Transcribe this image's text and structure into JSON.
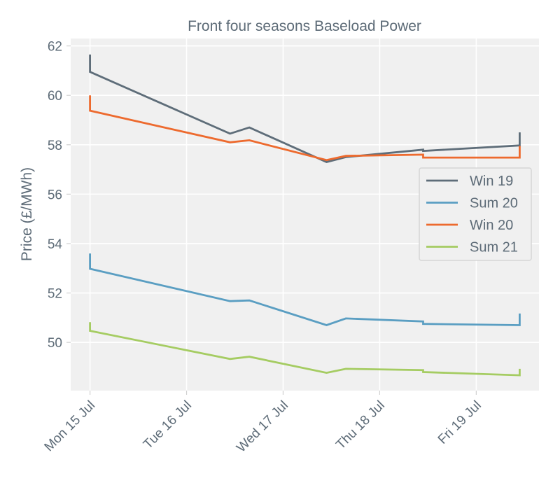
{
  "chart_data": {
    "type": "line",
    "title": "Front four seasons Baseload Power",
    "xlabel": "",
    "ylabel": "Price (£/MWh)",
    "x_ticks": [
      "Mon 15 Jul",
      "Tue 16 Jul",
      "Wed 17 Jul",
      "Thu 18 Jul",
      "Fri 19 Jul"
    ],
    "y_ticks": [
      50,
      52,
      54,
      56,
      58,
      60,
      62
    ],
    "xlim": [
      -0.2,
      4.65
    ],
    "ylim": [
      48.05,
      62.3
    ],
    "grid": true,
    "legend_position": "right",
    "series": [
      {
        "name": "Win 19",
        "color": "#5e6d79",
        "points": [
          [
            0,
            61.65
          ],
          [
            0,
            60.95
          ],
          [
            1.45,
            58.45
          ],
          [
            1.65,
            58.7
          ],
          [
            2.45,
            57.3
          ],
          [
            2.65,
            57.5
          ],
          [
            3.45,
            57.8
          ],
          [
            3.45,
            57.75
          ],
          [
            4.45,
            57.97
          ],
          [
            4.45,
            58.5
          ]
        ]
      },
      {
        "name": "Sum 20",
        "color": "#5a9ec2",
        "points": [
          [
            0,
            53.6
          ],
          [
            0,
            52.98
          ],
          [
            1.45,
            51.67
          ],
          [
            1.65,
            51.7
          ],
          [
            2.45,
            50.7
          ],
          [
            2.65,
            50.97
          ],
          [
            3.45,
            50.85
          ],
          [
            3.45,
            50.75
          ],
          [
            4.45,
            50.7
          ],
          [
            4.45,
            51.17
          ]
        ]
      },
      {
        "name": "Win 20",
        "color": "#ed6a2e",
        "points": [
          [
            0,
            60.0
          ],
          [
            0,
            59.38
          ],
          [
            1.45,
            58.1
          ],
          [
            1.65,
            58.18
          ],
          [
            2.45,
            57.38
          ],
          [
            2.65,
            57.55
          ],
          [
            3.45,
            57.6
          ],
          [
            3.45,
            57.48
          ],
          [
            4.45,
            57.48
          ],
          [
            4.45,
            57.95
          ]
        ]
      },
      {
        "name": "Sum 21",
        "color": "#a5cc62",
        "points": [
          [
            0,
            50.82
          ],
          [
            0,
            50.47
          ],
          [
            1.45,
            49.33
          ],
          [
            1.65,
            49.42
          ],
          [
            2.45,
            48.77
          ],
          [
            2.65,
            48.93
          ],
          [
            3.45,
            48.88
          ],
          [
            3.45,
            48.8
          ],
          [
            4.45,
            48.67
          ],
          [
            4.45,
            48.93
          ]
        ]
      }
    ]
  }
}
